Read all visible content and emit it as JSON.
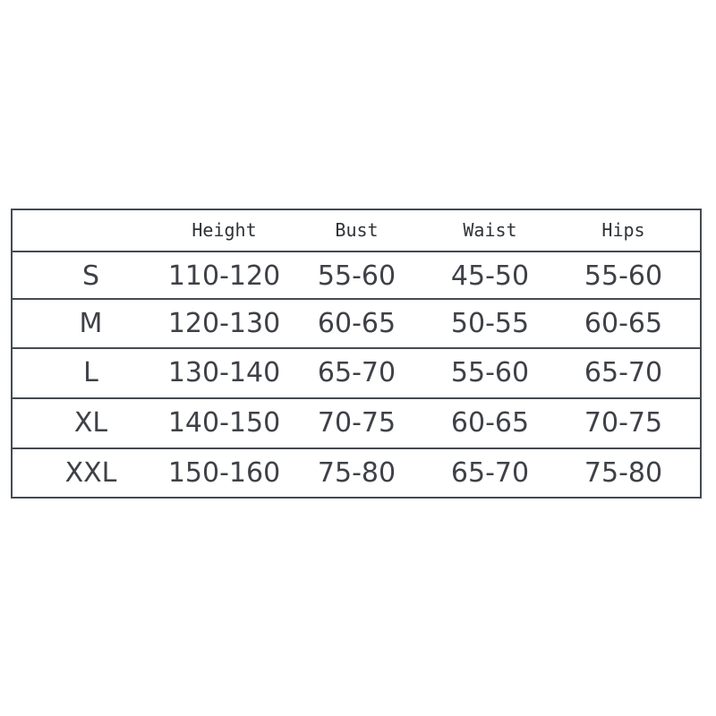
{
  "headers": [
    "",
    "Height",
    "Bust",
    "Waist",
    "Hips"
  ],
  "rows": [
    [
      "S",
      "110-120",
      "55-60",
      "45-50",
      "55-60"
    ],
    [
      "M",
      "120-130",
      "60-65",
      "50-55",
      "60-65"
    ],
    [
      "L",
      "130-140",
      "65-70",
      "55-60",
      "65-70"
    ],
    [
      "XL",
      "140-150",
      "70-75",
      "60-65",
      "70-75"
    ],
    [
      "XXL",
      "150-160",
      "75-80",
      "65-70",
      "75-80"
    ]
  ]
}
